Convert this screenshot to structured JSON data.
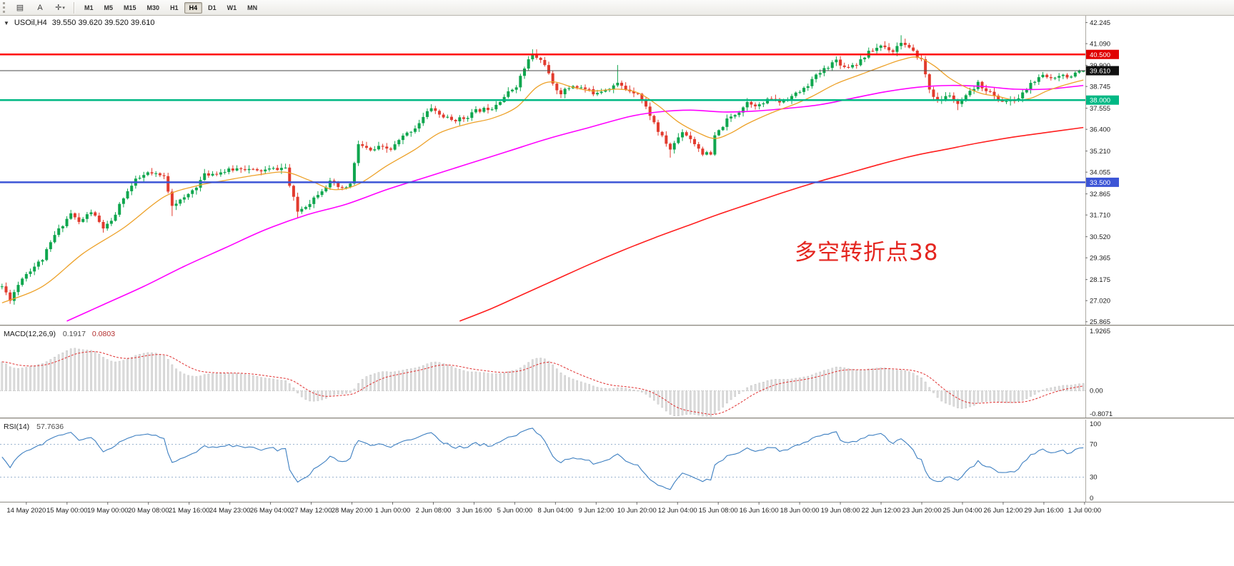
{
  "toolbar": {
    "icons": [
      {
        "name": "chart-list",
        "glyph": "▤"
      },
      {
        "name": "text-label",
        "glyph": "A"
      },
      {
        "name": "crosshair",
        "glyph": "✛",
        "dropdown": "▾"
      }
    ],
    "timeframes": [
      "M1",
      "M5",
      "M15",
      "M30",
      "H1",
      "H4",
      "D1",
      "W1",
      "MN"
    ],
    "selected_timeframe": "H4"
  },
  "header": {
    "collapse_icon": "▼",
    "symbol": "USOil,H4",
    "ohlc_text": "39.550 39.620 39.520 39.610"
  },
  "macd_panel": {
    "label": "MACD(12,26,9)",
    "value_main": "0.1917",
    "value_signal": "0.0803",
    "axis_labels": [
      "1.9265",
      "0.00",
      "-0.8071"
    ],
    "range": [
      -0.8071,
      1.9265
    ],
    "histogram_color": "#dedede",
    "signal_color": "#e03030"
  },
  "rsi_panel": {
    "label": "RSI(14)",
    "value": "57.7636",
    "axis_labels": [
      "100",
      "70",
      "30",
      "0"
    ],
    "levels": [
      70,
      30
    ],
    "range": [
      0,
      100
    ],
    "line_color": "#3d7fc1",
    "level_color": "#9ab4cf"
  },
  "chart_data": {
    "type": "candlestick",
    "symbol": "USOil",
    "timeframe": "H4",
    "title": "USOil,H4",
    "candles_count": 268,
    "up_color": "#0fa64e",
    "down_color": "#e23b2e",
    "price_top": 42.62,
    "price_bottom": 25.7,
    "last_ohlc": [
      39.55,
      39.62,
      39.52,
      39.61
    ],
    "price_path": [
      [
        0,
        27.8
      ],
      [
        2,
        27.1
      ],
      [
        5,
        28.3
      ],
      [
        10,
        29.3
      ],
      [
        13,
        30.6
      ],
      [
        17,
        31.8
      ],
      [
        19,
        31.3
      ],
      [
        22,
        31.9
      ],
      [
        25,
        31.0
      ],
      [
        27,
        31.3
      ],
      [
        30,
        32.7
      ],
      [
        33,
        33.6
      ],
      [
        36,
        34.0
      ],
      [
        40,
        33.8
      ],
      [
        42,
        32.3
      ],
      [
        45,
        32.6
      ],
      [
        48,
        33.3
      ],
      [
        50,
        33.9
      ],
      [
        55,
        34.1
      ],
      [
        59,
        34.3
      ],
      [
        63,
        34.1
      ],
      [
        66,
        34.2
      ],
      [
        70,
        34.3
      ],
      [
        71,
        33.3
      ],
      [
        73,
        31.9
      ],
      [
        76,
        32.4
      ],
      [
        78,
        32.9
      ],
      [
        81,
        33.5
      ],
      [
        84,
        33.1
      ],
      [
        86,
        33.4
      ],
      [
        88,
        35.6
      ],
      [
        91,
        35.2
      ],
      [
        93,
        35.4
      ],
      [
        96,
        35.3
      ],
      [
        99,
        36.0
      ],
      [
        102,
        36.5
      ],
      [
        106,
        37.6
      ],
      [
        108,
        37.2
      ],
      [
        111,
        36.9
      ],
      [
        114,
        37.0
      ],
      [
        117,
        37.4
      ],
      [
        121,
        37.6
      ],
      [
        124,
        38.2
      ],
      [
        127,
        38.8
      ],
      [
        130,
        40.2
      ],
      [
        131,
        40.5
      ],
      [
        134,
        40.0
      ],
      [
        136,
        38.8
      ],
      [
        138,
        38.4
      ],
      [
        141,
        38.8
      ],
      [
        144,
        38.6
      ],
      [
        146,
        38.4
      ],
      [
        149,
        38.6
      ],
      [
        152,
        38.9
      ],
      [
        154,
        38.6
      ],
      [
        157,
        38.4
      ],
      [
        160,
        37.2
      ],
      [
        162,
        36.3
      ],
      [
        165,
        35.3
      ],
      [
        168,
        36.3
      ],
      [
        170,
        35.9
      ],
      [
        173,
        35.1
      ],
      [
        175,
        35.0
      ],
      [
        176,
        36.0
      ],
      [
        179,
        36.9
      ],
      [
        182,
        37.4
      ],
      [
        184,
        37.9
      ],
      [
        187,
        37.7
      ],
      [
        190,
        38.1
      ],
      [
        192,
        37.9
      ],
      [
        195,
        38.2
      ],
      [
        198,
        38.6
      ],
      [
        200,
        39.1
      ],
      [
        203,
        39.7
      ],
      [
        206,
        40.2
      ],
      [
        208,
        39.8
      ],
      [
        211,
        40.0
      ],
      [
        214,
        40.6
      ],
      [
        217,
        41.0
      ],
      [
        220,
        40.7
      ],
      [
        222,
        41.2
      ],
      [
        224,
        40.8
      ],
      [
        227,
        40.2
      ],
      [
        229,
        38.6
      ],
      [
        231,
        37.9
      ],
      [
        234,
        38.3
      ],
      [
        236,
        37.7
      ],
      [
        239,
        38.4
      ],
      [
        241,
        38.9
      ],
      [
        244,
        38.4
      ],
      [
        246,
        38.0
      ],
      [
        249,
        37.9
      ],
      [
        251,
        38.1
      ],
      [
        254,
        38.9
      ],
      [
        257,
        39.3
      ],
      [
        259,
        39.2
      ],
      [
        261,
        39.4
      ],
      [
        264,
        39.3
      ],
      [
        267,
        39.61
      ]
    ],
    "wick_highs": [
      [
        131,
        40.78
      ],
      [
        152,
        39.92
      ],
      [
        222,
        41.55
      ]
    ],
    "wick_lows": [
      [
        2,
        26.95
      ],
      [
        42,
        31.65
      ],
      [
        73,
        31.55
      ],
      [
        165,
        34.85
      ],
      [
        236,
        37.45
      ]
    ],
    "moving_averages": [
      {
        "name": "ma-slow-red",
        "color": "#ff1e1e",
        "width": 1.6,
        "path": [
          [
            113,
            25.9
          ],
          [
            121,
            26.6
          ],
          [
            129,
            27.4
          ],
          [
            137,
            28.2
          ],
          [
            145,
            29.0
          ],
          [
            153,
            29.75
          ],
          [
            161,
            30.45
          ],
          [
            169,
            31.1
          ],
          [
            177,
            31.75
          ],
          [
            185,
            32.35
          ],
          [
            193,
            32.95
          ],
          [
            201,
            33.5
          ],
          [
            209,
            34.0
          ],
          [
            217,
            34.5
          ],
          [
            225,
            34.95
          ],
          [
            233,
            35.3
          ],
          [
            241,
            35.65
          ],
          [
            249,
            35.95
          ],
          [
            257,
            36.2
          ],
          [
            267,
            36.5
          ]
        ]
      },
      {
        "name": "ma-medium-magenta",
        "color": "#ff00ff",
        "width": 1.6,
        "path": [
          [
            16,
            25.9
          ],
          [
            25,
            26.8
          ],
          [
            35,
            27.8
          ],
          [
            45,
            28.9
          ],
          [
            55,
            29.9
          ],
          [
            65,
            30.9
          ],
          [
            75,
            31.7
          ],
          [
            85,
            32.3
          ],
          [
            95,
            33.1
          ],
          [
            105,
            33.8
          ],
          [
            115,
            34.5
          ],
          [
            125,
            35.2
          ],
          [
            135,
            35.9
          ],
          [
            145,
            36.5
          ],
          [
            155,
            37.1
          ],
          [
            162,
            37.35
          ],
          [
            170,
            37.45
          ],
          [
            178,
            37.35
          ],
          [
            186,
            37.4
          ],
          [
            194,
            37.55
          ],
          [
            202,
            37.75
          ],
          [
            210,
            38.1
          ],
          [
            218,
            38.45
          ],
          [
            226,
            38.7
          ],
          [
            234,
            38.8
          ],
          [
            242,
            38.75
          ],
          [
            250,
            38.6
          ],
          [
            258,
            38.6
          ],
          [
            267,
            38.8
          ]
        ]
      },
      {
        "name": "ma-fast-orange",
        "color": "#eda128",
        "width": 1.3,
        "path": [
          [
            0,
            26.9
          ],
          [
            10,
            27.8
          ],
          [
            20,
            29.6
          ],
          [
            30,
            31.0
          ],
          [
            40,
            32.7
          ],
          [
            48,
            33.3
          ],
          [
            55,
            33.6
          ],
          [
            63,
            33.9
          ],
          [
            70,
            34.05
          ],
          [
            76,
            33.6
          ],
          [
            82,
            33.1
          ],
          [
            88,
            33.4
          ],
          [
            95,
            34.4
          ],
          [
            102,
            35.3
          ],
          [
            108,
            36.2
          ],
          [
            115,
            36.7
          ],
          [
            121,
            37.0
          ],
          [
            127,
            37.6
          ],
          [
            132,
            38.7
          ],
          [
            136,
            39.0
          ],
          [
            141,
            38.7
          ],
          [
            146,
            38.5
          ],
          [
            152,
            38.6
          ],
          [
            157,
            38.4
          ],
          [
            162,
            37.7
          ],
          [
            167,
            36.8
          ],
          [
            172,
            36.2
          ],
          [
            176,
            35.9
          ],
          [
            180,
            36.2
          ],
          [
            184,
            36.7
          ],
          [
            190,
            37.3
          ],
          [
            196,
            37.8
          ],
          [
            200,
            38.2
          ],
          [
            206,
            38.9
          ],
          [
            212,
            39.4
          ],
          [
            218,
            39.9
          ],
          [
            222,
            40.2
          ],
          [
            226,
            40.35
          ],
          [
            230,
            39.9
          ],
          [
            234,
            39.2
          ],
          [
            238,
            38.7
          ],
          [
            242,
            38.35
          ],
          [
            246,
            38.2
          ],
          [
            250,
            38.0
          ],
          [
            254,
            38.1
          ],
          [
            258,
            38.5
          ],
          [
            262,
            38.8
          ],
          [
            267,
            39.1
          ]
        ]
      }
    ],
    "levels": [
      {
        "price": 40.5,
        "label": "40.500",
        "line_color": "#ff0000",
        "line_width": 2.5,
        "label_bg": "#e00000"
      },
      {
        "price": 38.0,
        "label": "38.000",
        "line_color": "#00b884",
        "line_width": 2.5,
        "label_bg": "#00b884"
      },
      {
        "price": 33.5,
        "label": "33.500",
        "line_color": "#3c55d6",
        "line_width": 2.5,
        "label_bg": "#3c55d6"
      },
      {
        "price": 39.61,
        "label": "39.610",
        "line_color": "#4a4a4a",
        "line_width": 1,
        "label_bg": "#111111"
      }
    ],
    "y_ticks": [
      "42.245",
      "41.090",
      "39.900",
      "38.745",
      "37.555",
      "36.400",
      "35.210",
      "34.055",
      "32.865",
      "31.710",
      "30.520",
      "29.365",
      "28.175",
      "27.020",
      "25.865"
    ],
    "x_labels": [
      "14 May 2020",
      "15 May 00:00",
      "19 May 00:00",
      "20 May 08:00",
      "21 May 16:00",
      "24 May 23:00",
      "26 May 04:00",
      "27 May 12:00",
      "28 May 20:00",
      "1 Jun 00:00",
      "2 Jun 08:00",
      "3 Jun 16:00",
      "5 Jun 00:00",
      "8 Jun 04:00",
      "9 Jun 12:00",
      "10 Jun 20:00",
      "12 Jun 04:00",
      "15 Jun 08:00",
      "16 Jun 16:00",
      "18 Jun 00:00",
      "19 Jun 08:00",
      "22 Jun 12:00",
      "23 Jun 20:00",
      "25 Jun 04:00",
      "26 Jun 12:00",
      "29 Jun 16:00",
      "1 Jul 00:00"
    ],
    "annotation": {
      "text": "多空转折点38",
      "color": "#e4251f"
    }
  }
}
